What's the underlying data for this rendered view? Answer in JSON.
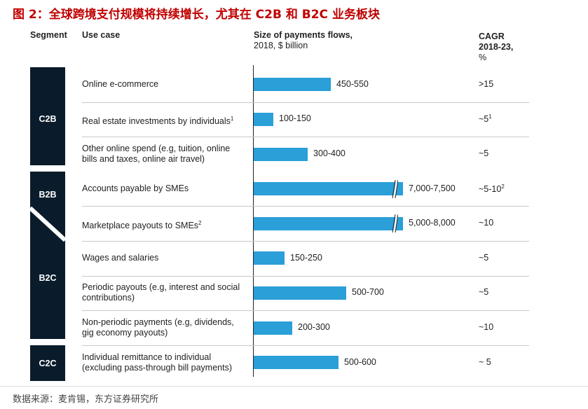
{
  "title": "图 2：全球跨境支付规模将持续增长，尤其在 C2B 和 B2C 业务板块",
  "headers": {
    "segment": "Segment",
    "use_case": "Use case",
    "size_line1": "Size of payments flows,",
    "size_line2": "2018, $ billion",
    "cagr_line1": "CAGR",
    "cagr_line2": "2018-23,",
    "cagr_line3": "%"
  },
  "segments": [
    "C2B",
    "B2B",
    "B2C",
    "C2C"
  ],
  "rows": [
    {
      "use_line1": "Online e-commerce",
      "use_line2": "",
      "sup": "",
      "value_label": "450-550",
      "cagr": ">15",
      "cagr_sup": ""
    },
    {
      "use_line1": "Real estate investments by individuals",
      "use_line2": "",
      "sup": "1",
      "value_label": "100-150",
      "cagr": "~5",
      "cagr_sup": "1"
    },
    {
      "use_line1": "Other online spend (e.g, tuition, online",
      "use_line2": "bills and taxes, online air travel)",
      "sup": "",
      "value_label": "300-400",
      "cagr": "~5",
      "cagr_sup": ""
    },
    {
      "use_line1": "Accounts payable by SMEs",
      "use_line2": "",
      "sup": "",
      "value_label": "7,000-7,500",
      "cagr": "~5-10",
      "cagr_sup": "2"
    },
    {
      "use_line1": "Marketplace payouts to SMEs",
      "use_line2": "",
      "sup": "2",
      "value_label": "5,000-8,000",
      "cagr": "~10",
      "cagr_sup": ""
    },
    {
      "use_line1": "Wages and salaries",
      "use_line2": "",
      "sup": "",
      "value_label": "150-250",
      "cagr": "~5",
      "cagr_sup": ""
    },
    {
      "use_line1": "Periodic payouts (e.g, interest and social",
      "use_line2": "contributions)",
      "sup": "",
      "value_label": "500-700",
      "cagr": "~5",
      "cagr_sup": ""
    },
    {
      "use_line1": "Non-periodic payments (e.g, dividends,",
      "use_line2": "gig economy payouts)",
      "sup": "",
      "value_label": "200-300",
      "cagr": "~10",
      "cagr_sup": ""
    },
    {
      "use_line1": "Individual remittance to individual",
      "use_line2": "(excluding pass-through bill payments)",
      "sup": "",
      "value_label": "500-600",
      "cagr": "~ 5",
      "cagr_sup": ""
    }
  ],
  "source": "数据来源：麦肯锡，东方证券研究所",
  "colors": {
    "bar": "#2a9fd8",
    "segment": "#0a1c2b",
    "title": "#c00000"
  },
  "chart_data": {
    "type": "bar",
    "orientation": "horizontal",
    "categories": [
      "Online e-commerce",
      "Real estate investments by individuals",
      "Other online spend (e.g, tuition, online bills and taxes, online air travel)",
      "Accounts payable by SMEs",
      "Marketplace payouts to SMEs",
      "Wages and salaries",
      "Periodic payouts (e.g, interest and social contributions)",
      "Non-periodic payments (e.g, dividends, gig economy payouts)",
      "Individual remittance to individual (excluding pass-through bill payments)"
    ],
    "segments": [
      "C2B",
      "C2B",
      "C2B",
      "B2B",
      "B2C",
      "B2C",
      "B2C",
      "B2C",
      "C2C"
    ],
    "values": [
      500,
      125,
      350,
      7250,
      6500,
      200,
      600,
      250,
      550
    ],
    "value_labels": [
      "450-550",
      "100-150",
      "300-400",
      "7,000-7,500",
      "5,000-8,000",
      "150-250",
      "500-700",
      "200-300",
      "500-600"
    ],
    "broken_axis_bars": [
      3,
      4
    ],
    "cagr": [
      ">15",
      "~5",
      "~5",
      "~5-10",
      "~10",
      "~5",
      "~5",
      "~10",
      "~ 5"
    ],
    "title": "图 2：全球跨境支付规模将持续增长，尤其在 C2B 和 B2C 业务板块",
    "xlabel": "Size of payments flows, 2018, $ billion"
  }
}
